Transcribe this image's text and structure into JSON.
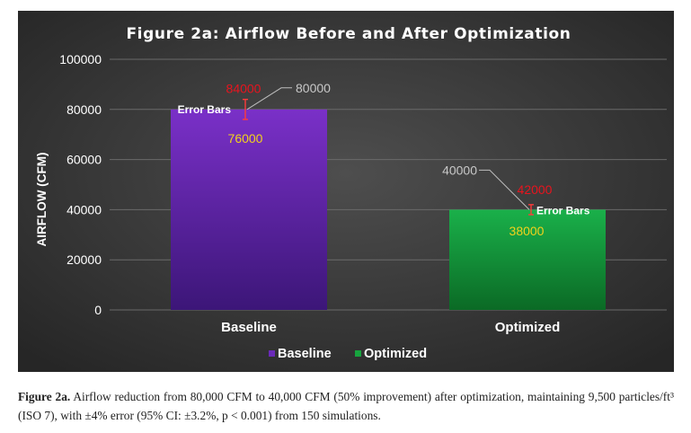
{
  "chart_data": {
    "type": "bar",
    "title": "Figure 2a: Airflow Before and After Optimization",
    "xlabel": "",
    "ylabel": "AIRFLOW (CFM)",
    "ylim": [
      0,
      100000
    ],
    "yticks": [
      0,
      20000,
      40000,
      60000,
      80000,
      100000
    ],
    "ytick_labels": [
      "0",
      "20000",
      "40000",
      "60000",
      "80000",
      "100000"
    ],
    "grid": true,
    "legend_position": "bottom",
    "categories": [
      "Baseline",
      "Optimized"
    ],
    "values": [
      80000,
      40000
    ],
    "series": [
      {
        "name": "Baseline",
        "value": 80000,
        "value_label": "80000",
        "error_upper": 84000,
        "error_upper_label": "84000",
        "error_lower": 76000,
        "error_lower_label": "76000",
        "annotation": "Error Bars",
        "color": "#6a2ab8"
      },
      {
        "name": "Optimized",
        "value": 40000,
        "value_label": "40000",
        "error_upper": 42000,
        "error_upper_label": "42000",
        "error_lower": 38000,
        "error_lower_label": "38000",
        "annotation": "Error Bars",
        "color": "#17a43e"
      }
    ],
    "legend": [
      "Baseline",
      "Optimized"
    ],
    "colors": {
      "background": "#3a3a3a",
      "grid": "#6a6a6a",
      "text": "#ffffff",
      "upper_label": "#e8141e",
      "lower_label": "#f2d21c",
      "value_label": "#c8c8c8"
    }
  },
  "caption": {
    "label": "Figure 2a.",
    "text": "Airflow reduction from 80,000 CFM to 40,000 CFM (50% improvement) after optimization, maintaining 9,500 particles/ft³ (ISO 7), with ±4% error (95% CI: ±3.2%, p < 0.001) from 150 simulations."
  }
}
